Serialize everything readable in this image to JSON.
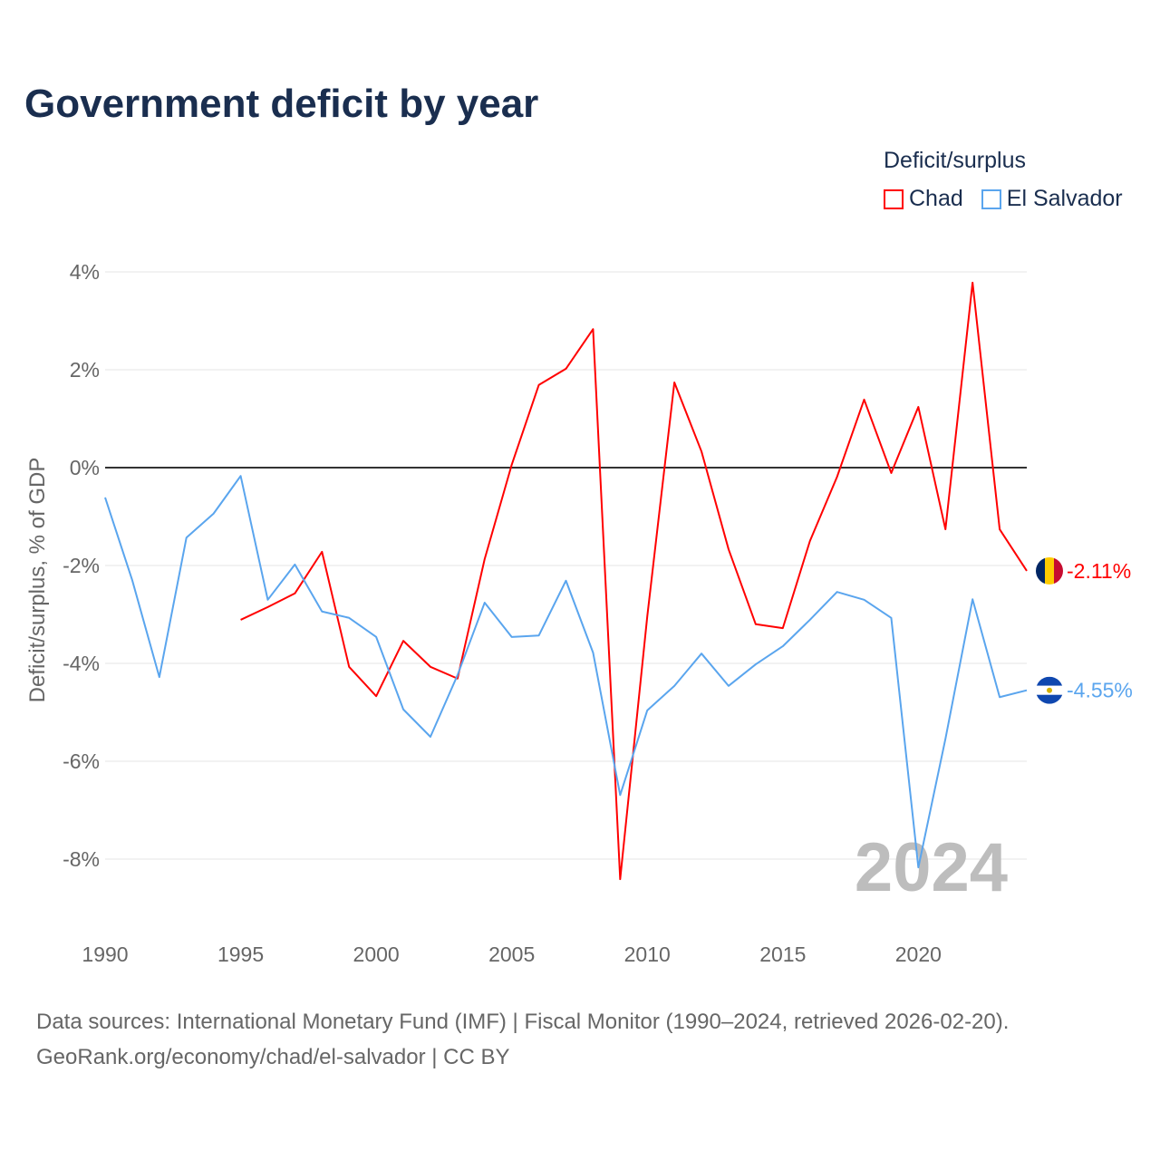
{
  "title": "Government deficit by year",
  "legend_title": "Deficit/surplus",
  "watermark_year": "2024",
  "source_line1": "Data sources: International Monetary Fund (IMF) | Fiscal Monitor (1990–2024, retrieved 2026-02-20).",
  "source_line2": "GeoRank.org/economy/chad/el-salvador | CC BY",
  "chart_data": {
    "type": "line",
    "title": "Government deficit by year",
    "xlabel": "",
    "ylabel": "Deficit/surplus, % of GDP",
    "xlim": [
      1990,
      2024
    ],
    "ylim": [
      -9,
      4.3
    ],
    "x_ticks": [
      1990,
      1995,
      2000,
      2005,
      2010,
      2015,
      2020
    ],
    "y_ticks": [
      4,
      2,
      0,
      -2,
      -4,
      -6,
      -8
    ],
    "y_tick_labels": [
      "4%",
      "2%",
      "0%",
      "-2%",
      "-4%",
      "-6%",
      "-8%"
    ],
    "grid": true,
    "legend_placement": "top-right",
    "series": [
      {
        "name": "Chad",
        "color": "#ff0000",
        "end_label": "-2.11%",
        "x": [
          1995,
          1996,
          1997,
          1998,
          1999,
          2000,
          2001,
          2002,
          2003,
          2004,
          2005,
          2006,
          2007,
          2008,
          2009,
          2010,
          2011,
          2012,
          2013,
          2014,
          2015,
          2016,
          2017,
          2018,
          2019,
          2020,
          2021,
          2022,
          2023,
          2024
        ],
        "values": [
          -3.11,
          -2.85,
          -2.57,
          -1.72,
          -4.07,
          -4.67,
          -3.54,
          -4.07,
          -4.31,
          -1.87,
          0.06,
          1.69,
          2.02,
          2.83,
          -8.41,
          -3.04,
          1.74,
          0.33,
          -1.67,
          -3.2,
          -3.28,
          -1.5,
          -0.19,
          1.39,
          -0.11,
          1.24,
          -1.26,
          3.78,
          -1.26,
          -2.11
        ]
      },
      {
        "name": "El Salvador",
        "color": "#5aa5ee",
        "end_label": "-4.55%",
        "x": [
          1990,
          1991,
          1992,
          1993,
          1994,
          1995,
          1996,
          1997,
          1998,
          1999,
          2000,
          2001,
          2002,
          2003,
          2004,
          2005,
          2006,
          2007,
          2008,
          2009,
          2010,
          2011,
          2012,
          2013,
          2014,
          2015,
          2016,
          2017,
          2018,
          2019,
          2020,
          2021,
          2022,
          2023,
          2024
        ],
        "values": [
          -0.61,
          -2.3,
          -4.28,
          -1.43,
          -0.94,
          -0.17,
          -2.7,
          -1.98,
          -2.94,
          -3.07,
          -3.46,
          -4.94,
          -5.5,
          -4.24,
          -2.76,
          -3.46,
          -3.43,
          -2.31,
          -3.78,
          -6.69,
          -4.96,
          -4.46,
          -3.8,
          -4.46,
          -4.02,
          -3.65,
          -3.11,
          -2.54,
          -2.7,
          -3.07,
          -8.17,
          -5.54,
          -2.69,
          -4.69,
          -4.55
        ]
      }
    ]
  }
}
